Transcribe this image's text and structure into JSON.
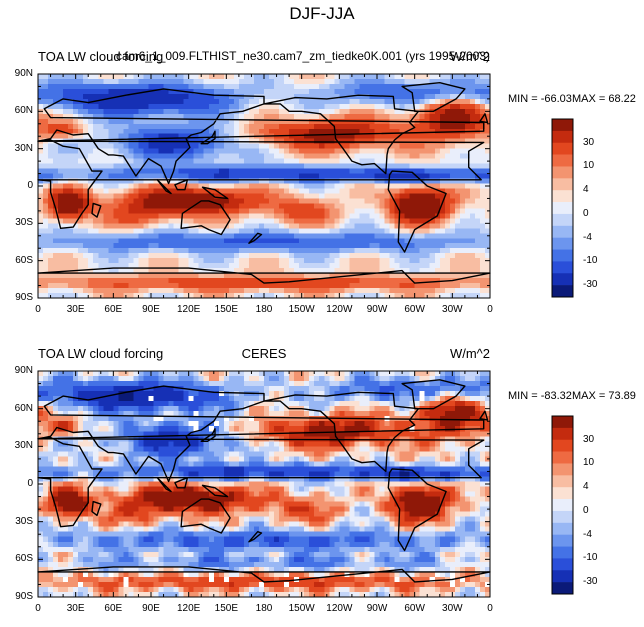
{
  "figure": {
    "title": "DJF-JJA"
  },
  "colors": {
    "palette": [
      "#0b1a78",
      "#1630b5",
      "#2a4fd9",
      "#4472e6",
      "#6c95ee",
      "#98b7f4",
      "#c4d5f8",
      "#e9eefb",
      "#fbe1d3",
      "#f8bda2",
      "#f39470",
      "#ee6a42",
      "#e2471f",
      "#c42b0f",
      "#8f1808"
    ],
    "land_outline": "#000000",
    "missing": "#ffffff"
  },
  "panels": [
    {
      "left_title": "TOA LW cloud forcing",
      "center_title": "cam6_1_009.FLTHIST_ne30.cam7_zm_tiedke0K.001 (yrs 1995-2003)",
      "units": "W/m^2",
      "min_label": "MIN = -66.03",
      "max_label": "MAX =  68.22"
    },
    {
      "left_title": "TOA LW cloud forcing",
      "center_title": "CERES",
      "units": "W/m^2",
      "min_label": "MIN = -83.32",
      "max_label": "MAX =  73.89"
    }
  ],
  "lat_ticks": [
    "90N",
    "60N",
    "30N",
    "0",
    "30S",
    "60S",
    "90S"
  ],
  "lon_ticks": [
    "0",
    "30E",
    "60E",
    "90E",
    "120E",
    "150E",
    "180",
    "150W",
    "120W",
    "90W",
    "60W",
    "30W",
    "0"
  ],
  "colorbar_labels": [
    "30",
    "10",
    "4",
    "0",
    "-4",
    "-10",
    "-30"
  ],
  "chart_data": {
    "type": "heatmap",
    "variable": "TOA LW cloud forcing",
    "season_difference": "DJF-JJA",
    "units": "W/m^2",
    "xlim": [
      0,
      360
    ],
    "ylim": [
      -90,
      90
    ],
    "contour_levels": [
      -40,
      -30,
      -20,
      -15,
      -10,
      -7,
      -4,
      -2,
      0,
      2,
      4,
      7,
      10,
      15,
      20,
      30
    ],
    "panels": [
      {
        "name": "cam6_1_009.FLTHIST_ne30.cam7_zm_tiedke0K.001 (yrs 1995-2003)",
        "min": -66.03,
        "max": 68.22
      },
      {
        "name": "CERES",
        "min": -83.32,
        "max": 73.89
      }
    ]
  }
}
